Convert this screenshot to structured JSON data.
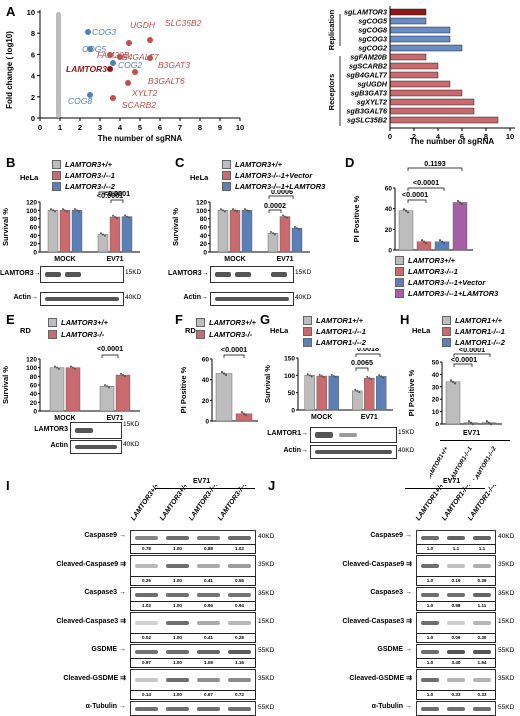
{
  "panels": {
    "A": "A",
    "B": "B",
    "C": "C",
    "D": "D",
    "E": "E",
    "F": "F",
    "G": "G",
    "H": "H",
    "I": "I",
    "J": "J"
  },
  "colors": {
    "gray": "#bdbdbd",
    "red": "#c96a6e",
    "blue": "#5b7fb7",
    "purple": "#a55fa5",
    "darkred": "#8b1a1a",
    "scatterRed": "#c0504d",
    "scatterBlue": "#4f81bd"
  },
  "panelA": {
    "scatter": {
      "ylabel": "Fold change ( log10)",
      "xlabel": "The number of sgRNA",
      "xticks": [
        "0",
        "1",
        "2",
        "3",
        "4",
        "5",
        "6",
        "7",
        "8",
        "9",
        "10"
      ],
      "yticks": [
        "0",
        "2",
        "4",
        "6",
        "8",
        "10"
      ],
      "genes": [
        {
          "name": "COG3",
          "color": "blue"
        },
        {
          "name": "COG5",
          "color": "blue"
        },
        {
          "name": "UGDH",
          "color": "red"
        },
        {
          "name": "SLC35B2",
          "color": "red"
        },
        {
          "name": "FAM20B",
          "color": "red"
        },
        {
          "name": "B4GALT7",
          "color": "red"
        },
        {
          "name": "B3GAT3",
          "color": "red"
        },
        {
          "name": "COG2",
          "color": "blue"
        },
        {
          "name": "LAMTOR3",
          "color": "darkred"
        },
        {
          "name": "B3GALT6",
          "color": "red"
        },
        {
          "name": "XYLT2",
          "color": "red"
        },
        {
          "name": "COG8",
          "color": "blue"
        },
        {
          "name": "SCARB2",
          "color": "red"
        }
      ]
    },
    "barchart": {
      "xlabel": "The number of sgRNA",
      "groups": [
        "Replication",
        "Receptors"
      ],
      "xticks": [
        "0",
        "2",
        "4",
        "6",
        "8",
        "10"
      ]
    }
  },
  "chart_data": [
    {
      "type": "bar",
      "title": "",
      "xlabel": "The number of sgRNA",
      "ylabel": "",
      "categories": [
        "sgLAMTOR3",
        "sgCOG5",
        "sgCOG8",
        "sgCOG3",
        "sgCOG2",
        "sgFAM20B",
        "sgSCARB2",
        "sgB4GALT7",
        "sgUGDH",
        "sgB3GAT3",
        "sgXYLT2",
        "sgB3GALT6",
        "sgSLC35B2"
      ],
      "values": [
        3,
        3,
        5,
        5,
        6,
        3,
        4,
        4,
        5,
        6,
        7,
        7,
        9
      ],
      "xlim": [
        0,
        10
      ]
    },
    {
      "type": "bar",
      "title": "",
      "ylabel": "Survival %",
      "categories": [
        "MOCK",
        "EV71"
      ],
      "panel": "B",
      "series": [
        {
          "name": "LAMTOR3+/+",
          "values": [
            100,
            42
          ]
        },
        {
          "name": "LAMTOR3-/--1",
          "values": [
            100,
            84
          ]
        },
        {
          "name": "LAMTOR3-/--2",
          "values": [
            100,
            85
          ]
        }
      ],
      "ylim": [
        0,
        120
      ]
    },
    {
      "type": "bar",
      "title": "",
      "ylabel": "Survival %",
      "categories": [
        "MOCK",
        "EV71"
      ],
      "panel": "C",
      "series": [
        {
          "name": "LAMTOR3+/+",
          "values": [
            100,
            45
          ]
        },
        {
          "name": "LAMTOR3-/--1+Vector",
          "values": [
            100,
            85
          ]
        },
        {
          "name": "LAMTOR3-/--1+LAMTOR3",
          "values": [
            100,
            57
          ]
        }
      ],
      "ylim": [
        0,
        120
      ]
    },
    {
      "type": "bar",
      "title": "",
      "ylabel": "PI Positive %",
      "panel": "D",
      "categories": [
        "LAMTOR3+/+",
        "LAMTOR3-/--1",
        "LAMTOR3-/--1+Vector",
        "LAMTOR3-/--1+LAMTOR3"
      ],
      "values": [
        38,
        8,
        8,
        46
      ],
      "ylim": [
        0,
        60
      ]
    },
    {
      "type": "bar",
      "title": "",
      "ylabel": "Survival %",
      "categories": [
        "MOCK",
        "EV71"
      ],
      "panel": "E",
      "series": [
        {
          "name": "LAMTOR3+/+",
          "values": [
            100,
            57
          ]
        },
        {
          "name": "LAMTOR3-/-",
          "values": [
            100,
            83
          ]
        }
      ],
      "ylim": [
        0,
        120
      ]
    },
    {
      "type": "bar",
      "title": "",
      "ylabel": "PI Positive %",
      "panel": "F",
      "categories": [
        "LAMTOR3+/+",
        "LAMTOR3-/-"
      ],
      "values": [
        46,
        7
      ],
      "ylim": [
        0,
        60
      ]
    },
    {
      "type": "bar",
      "title": "",
      "ylabel": "Survival %",
      "categories": [
        "MOCK",
        "EV71"
      ],
      "panel": "G",
      "series": [
        {
          "name": "LAMTOR1+/+",
          "values": [
            100,
            55
          ]
        },
        {
          "name": "LAMTOR1-/--1",
          "values": [
            98,
            92
          ]
        },
        {
          "name": "LAMTOR1-/--2",
          "values": [
            98,
            97
          ]
        }
      ],
      "ylim": [
        0,
        150
      ]
    },
    {
      "type": "bar",
      "title": "",
      "ylabel": "PI Positive %",
      "panel": "H",
      "categories": [
        "LAMTOR1+/+",
        "LAMTOR1-/--1",
        "LAMTOR1-/--2"
      ],
      "values": [
        34,
        1,
        1
      ],
      "ylim": [
        0,
        50
      ]
    }
  ],
  "panelB": {
    "cell": "HeLa",
    "legend": [
      "LAMTOR3+/+",
      "LAMTOR3-/--1",
      "LAMTOR3-/--2"
    ],
    "pvals": [
      "<0.0001",
      "<0.0001"
    ],
    "yticks": [
      "0",
      "20",
      "40",
      "60",
      "80",
      "100",
      "120"
    ],
    "xticks": [
      "MOCK",
      "EV71"
    ],
    "blot": [
      "LAMTOR3",
      "Actin"
    ],
    "kd": [
      "15KD",
      "40KD"
    ]
  },
  "panelC": {
    "cell": "HeLa",
    "legend": [
      "LAMTOR3+/+",
      "LAMTOR3-/--1+Vector",
      "LAMTOR3-/--1+LAMTOR3"
    ],
    "pvals": [
      "0.0006",
      "0.0002"
    ],
    "yticks": [
      "0",
      "20",
      "40",
      "60",
      "80",
      "100",
      "120"
    ],
    "xticks": [
      "MOCK",
      "EV71"
    ],
    "blot": [
      "LAMTOR3",
      "Actin"
    ],
    "kd": [
      "15KD",
      "40KD"
    ]
  },
  "panelD": {
    "legend": [
      "LAMTOR3+/+",
      "LAMTOR3-/--1",
      "LAMTOR3-/--1+Vector",
      "LAMTOR3-/--1+LAMTOR3"
    ],
    "pvals": [
      "0.1193",
      "<0.0001",
      "<0.0001"
    ],
    "yticks": [
      "0",
      "20",
      "40",
      "60"
    ]
  },
  "panelE": {
    "cell": "RD",
    "legend": [
      "LAMTOR3+/+",
      "LAMTOR3-/-"
    ],
    "pval": "<0.0001",
    "yticks": [
      "0",
      "20",
      "40",
      "60",
      "80",
      "100",
      "120"
    ],
    "xticks": [
      "MOCK",
      "EV71"
    ],
    "blot": [
      "LAMTOR3",
      "Actin"
    ],
    "kd": [
      "15KD",
      "40KD"
    ]
  },
  "panelF": {
    "cell": "RD",
    "legend": [
      "LAMTOR3+/+",
      "LAMTOR3-/-"
    ],
    "pval": "<0.0001",
    "yticks": [
      "0",
      "20",
      "40",
      "60"
    ]
  },
  "panelG": {
    "cell": "HeLa",
    "legend": [
      "LAMTOR1+/+",
      "LAMTOR1-/--1",
      "LAMTOR1-/--2"
    ],
    "pvals": [
      "0.0018",
      "0.0065"
    ],
    "yticks": [
      "0",
      "50",
      "100",
      "150"
    ],
    "xticks": [
      "MOCK",
      "EV71"
    ],
    "blot": [
      "LAMTOR1",
      "Actin"
    ],
    "kd": [
      "15KD",
      "40KD"
    ]
  },
  "panelH": {
    "cell": "HeLa",
    "legend": [
      "LAMTOR1+/+",
      "LAMTOR1-/--1",
      "LAMTOR1-/--2"
    ],
    "pvals": [
      "<0.0001",
      "<0.0001"
    ],
    "yticks": [
      "0",
      "10",
      "20",
      "30",
      "40",
      "50"
    ],
    "ev71": "EV71",
    "xcats": [
      "LAMTOR1+/+",
      "LAMTOR1-/--1",
      "LAMTOR1-/--2"
    ]
  },
  "panelI": {
    "ev71": "EV71",
    "lanes": [
      "LAMTOR3+/+",
      "LAMTOR3+/+",
      "LAMTOR3-/--1",
      "LAMTOR3-/--2"
    ],
    "rows": [
      {
        "label": "Caspase9",
        "kd": "40KD",
        "q": [
          "0.78",
          "1.00",
          "0.88",
          "1.02"
        ]
      },
      {
        "label": "Cleaved-Caspase9",
        "kd": "35KD",
        "q": [
          "0.26",
          "1.00",
          "0.41",
          "0.55"
        ]
      },
      {
        "label": "Caspase3",
        "kd": "35KD",
        "q": [
          "1.03",
          "1.00",
          "0.96",
          "0.94"
        ]
      },
      {
        "label": "Cleaved-Caspase3",
        "kd": "15KD",
        "q": [
          "0.02",
          "1.00",
          "0.41",
          "0.28"
        ]
      },
      {
        "label": "GSDME",
        "kd": "55KD",
        "q": [
          "0.97",
          "1.00",
          "1.08",
          "1.16"
        ]
      },
      {
        "label": "Cleaved-GSDME",
        "kd": "35KD",
        "q": [
          "0.14",
          "1.00",
          "0.67",
          "0.72"
        ]
      },
      {
        "label": "α-Tubulin",
        "kd": "55KD",
        "q": []
      }
    ]
  },
  "panelJ": {
    "ev71": "EV71",
    "lanes": [
      "LAMTOR1+/+",
      "LAMTOR1-/--1",
      "LAMTOR1-/--2"
    ],
    "rows": [
      {
        "label": "Caspase9",
        "kd": "40KD",
        "q": [
          "1.0",
          "1.1",
          "1.1"
        ]
      },
      {
        "label": "Cleaved-Caspase9",
        "kd": "35KD",
        "q": [
          "1.0",
          "0.19",
          "0.39"
        ]
      },
      {
        "label": "Caspase3",
        "kd": "35KD",
        "q": [
          "1.0",
          "0.98",
          "1.11"
        ]
      },
      {
        "label": "Cleaved-Caspase3",
        "kd": "15KD",
        "q": [
          "1.0",
          "0.06",
          "0.30"
        ]
      },
      {
        "label": "GSDME",
        "kd": "55KD",
        "q": [
          "1.0",
          "3.40",
          "1.94"
        ]
      },
      {
        "label": "Cleaved-GSDME",
        "kd": "35KD",
        "q": [
          "1.0",
          "0.33",
          "0.33"
        ]
      },
      {
        "label": "α-Tubulin",
        "kd": "55KD",
        "q": []
      }
    ]
  }
}
